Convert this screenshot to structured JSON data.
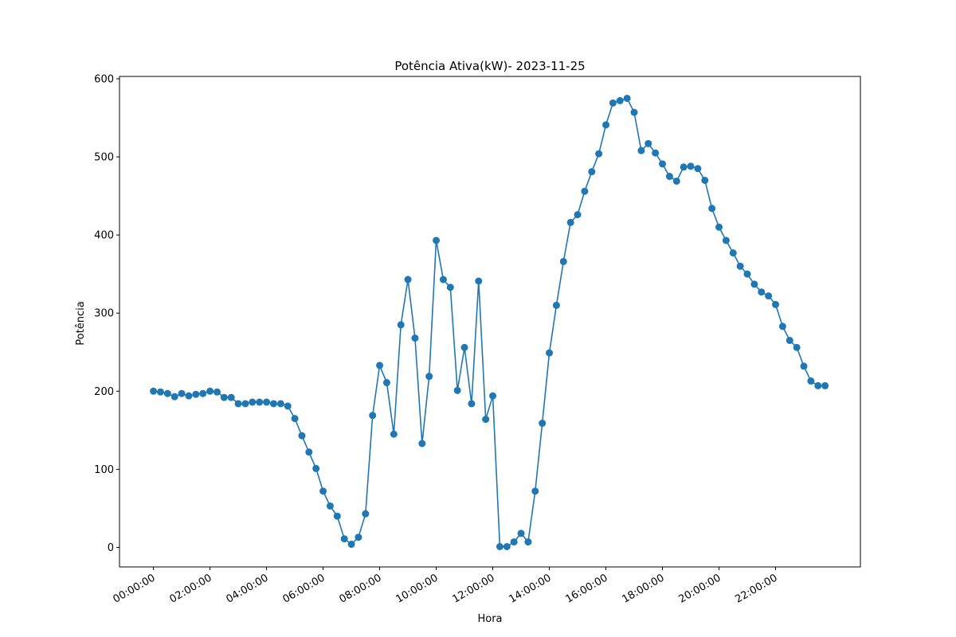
{
  "chart_data": {
    "type": "line",
    "title": "Potência Ativa(kW)- 2023-11-25",
    "xlabel": "Hora",
    "ylabel": "Potência",
    "xlim": [
      "-01:12:00",
      "25:00:00"
    ],
    "ylim": [
      -25,
      603
    ],
    "x_ticks": [
      "00:00:00",
      "02:00:00",
      "04:00:00",
      "06:00:00",
      "08:00:00",
      "10:00:00",
      "12:00:00",
      "14:00:00",
      "16:00:00",
      "18:00:00",
      "20:00:00",
      "22:00:00"
    ],
    "y_ticks": [
      0,
      100,
      200,
      300,
      400,
      500,
      600
    ],
    "grid": false,
    "legend": "none",
    "color": "#1f77b4",
    "series": [
      {
        "x": [
          "00:00:00",
          "00:15:00",
          "00:30:00",
          "00:45:00",
          "01:00:00",
          "01:15:00",
          "01:30:00",
          "01:45:00",
          "02:00:00",
          "02:15:00",
          "02:30:00",
          "02:45:00",
          "03:00:00",
          "03:15:00",
          "03:30:00",
          "03:45:00",
          "04:00:00",
          "04:15:00",
          "04:30:00",
          "04:45:00",
          "05:00:00",
          "05:15:00",
          "05:30:00",
          "05:45:00",
          "06:00:00",
          "06:15:00",
          "06:30:00",
          "06:45:00",
          "07:00:00",
          "07:15:00",
          "07:30:00",
          "07:45:00",
          "08:00:00",
          "08:15:00",
          "08:30:00",
          "08:45:00",
          "09:00:00",
          "09:15:00",
          "09:30:00",
          "09:45:00",
          "10:00:00",
          "10:15:00",
          "10:30:00",
          "10:45:00",
          "11:00:00",
          "11:15:00",
          "11:30:00",
          "11:45:00",
          "12:00:00",
          "12:15:00",
          "12:30:00",
          "12:45:00",
          "13:00:00",
          "13:15:00",
          "13:30:00",
          "13:45:00",
          "14:00:00",
          "14:15:00",
          "14:30:00",
          "14:45:00",
          "15:00:00",
          "15:15:00",
          "15:30:00",
          "15:45:00",
          "16:00:00",
          "16:15:00",
          "16:30:00",
          "16:45:00",
          "17:00:00",
          "17:15:00",
          "17:30:00",
          "17:45:00",
          "18:00:00",
          "18:15:00",
          "18:30:00",
          "18:45:00",
          "19:00:00",
          "19:15:00",
          "19:30:00",
          "19:45:00",
          "20:00:00",
          "20:15:00",
          "20:30:00",
          "20:45:00",
          "21:00:00",
          "21:15:00",
          "21:30:00",
          "21:45:00",
          "22:00:00",
          "22:15:00",
          "22:30:00",
          "22:45:00",
          "23:00:00",
          "23:15:00",
          "23:30:00",
          "23:45:00"
        ],
        "y": [
          200,
          199,
          197,
          193,
          197,
          194,
          196,
          197,
          200,
          199,
          192,
          192,
          184,
          184,
          186,
          186,
          186,
          184,
          184,
          181,
          165,
          143,
          122,
          101,
          72,
          53,
          40,
          11,
          4,
          13,
          43,
          169,
          233,
          211,
          145,
          285,
          343,
          268,
          133,
          219,
          393,
          343,
          333,
          201,
          256,
          184,
          341,
          164,
          194,
          1,
          1,
          7,
          18,
          7,
          72,
          159,
          249,
          310,
          366,
          416,
          426,
          456,
          481,
          504,
          541,
          569,
          572,
          575,
          557,
          508,
          517,
          505,
          491,
          475,
          469,
          487,
          488,
          485,
          470,
          434,
          410,
          393,
          377,
          360,
          350,
          337,
          327,
          322,
          311,
          283,
          265,
          256,
          232,
          213,
          207,
          207
        ]
      }
    ]
  }
}
